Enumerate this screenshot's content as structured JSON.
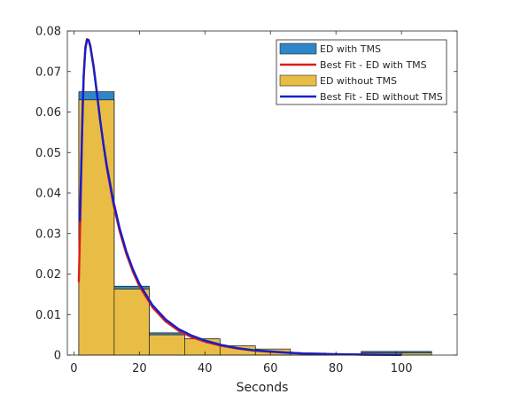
{
  "chart_data": {
    "type": "bar",
    "title": "",
    "xlabel": "Seconds",
    "ylabel": "",
    "xlim": [
      -2,
      117
    ],
    "ylim": [
      0,
      0.08
    ],
    "xticks": [
      0,
      20,
      40,
      60,
      80,
      100
    ],
    "yticks": [
      0,
      0.01,
      0.02,
      0.03,
      0.04,
      0.05,
      0.06,
      0.07,
      0.08
    ],
    "xtick_labels": [
      "0",
      "20",
      "40",
      "60",
      "80",
      "100"
    ],
    "ytick_labels": [
      "0",
      "0.01",
      "0.02",
      "0.03",
      "0.04",
      "0.05",
      "0.06",
      "0.07",
      "0.08"
    ],
    "grid": false,
    "legend_position": "top-right",
    "histograms": [
      {
        "name": "ED with TMS",
        "color": "#2e86c8",
        "bin_edges": [
          1.5,
          12.3,
          23.0,
          33.8,
          44.6,
          55.4,
          66.1,
          76.9,
          87.7,
          98.4,
          109.2
        ],
        "values": [
          0.065,
          0.017,
          0.0055,
          0.004,
          0.002,
          0.001,
          0.0003,
          0.0002,
          0.0009,
          0.0009
        ]
      },
      {
        "name": "ED without TMS",
        "color": "#e9bd45",
        "bin_edges": [
          1.5,
          12.3,
          23.0,
          33.8,
          44.6,
          55.4,
          66.1,
          76.9,
          87.7,
          98.4,
          109.2
        ],
        "values": [
          0.063,
          0.0163,
          0.005,
          0.004,
          0.0023,
          0.0015,
          0.0005,
          0.0002,
          0.0005,
          0.0005
        ]
      }
    ],
    "fits": [
      {
        "name": "Best Fit - ED with TMS",
        "color": "#e01b1b",
        "x": [
          1.5,
          2,
          2.5,
          3,
          3.5,
          4,
          4.5,
          5,
          6,
          7,
          8,
          9,
          10,
          12,
          14,
          16,
          18,
          20,
          24,
          28,
          32,
          36,
          40,
          45,
          50,
          55,
          60,
          65,
          70,
          80,
          90,
          100
        ],
        "y": [
          0.018,
          0.035,
          0.055,
          0.069,
          0.076,
          0.078,
          0.0778,
          0.0765,
          0.0715,
          0.065,
          0.058,
          0.052,
          0.0465,
          0.0375,
          0.0305,
          0.025,
          0.0206,
          0.017,
          0.0118,
          0.0083,
          0.006,
          0.0044,
          0.0033,
          0.0023,
          0.0016,
          0.0011,
          0.0008,
          0.0006,
          0.0004,
          0.0002,
          0.0001,
          5e-05
        ]
      },
      {
        "name": "Best Fit - ED without TMS",
        "color": "#1420c8",
        "x": [
          1.8,
          2.2,
          2.7,
          3,
          3.5,
          4,
          4.5,
          5,
          6,
          7,
          8,
          9,
          10,
          12,
          14,
          16,
          18,
          20,
          24,
          28,
          32,
          36,
          40,
          45,
          50,
          55,
          60,
          65,
          70,
          80,
          90,
          100
        ],
        "y": [
          0.033,
          0.045,
          0.062,
          0.069,
          0.0755,
          0.0778,
          0.0777,
          0.0762,
          0.0712,
          0.0648,
          0.0582,
          0.0522,
          0.047,
          0.0382,
          0.0312,
          0.0256,
          0.0212,
          0.0176,
          0.0123,
          0.0088,
          0.0064,
          0.0048,
          0.0036,
          0.0025,
          0.0017,
          0.0012,
          0.0009,
          0.0006,
          0.0004,
          0.0002,
          0.0001,
          5e-05
        ]
      }
    ]
  }
}
